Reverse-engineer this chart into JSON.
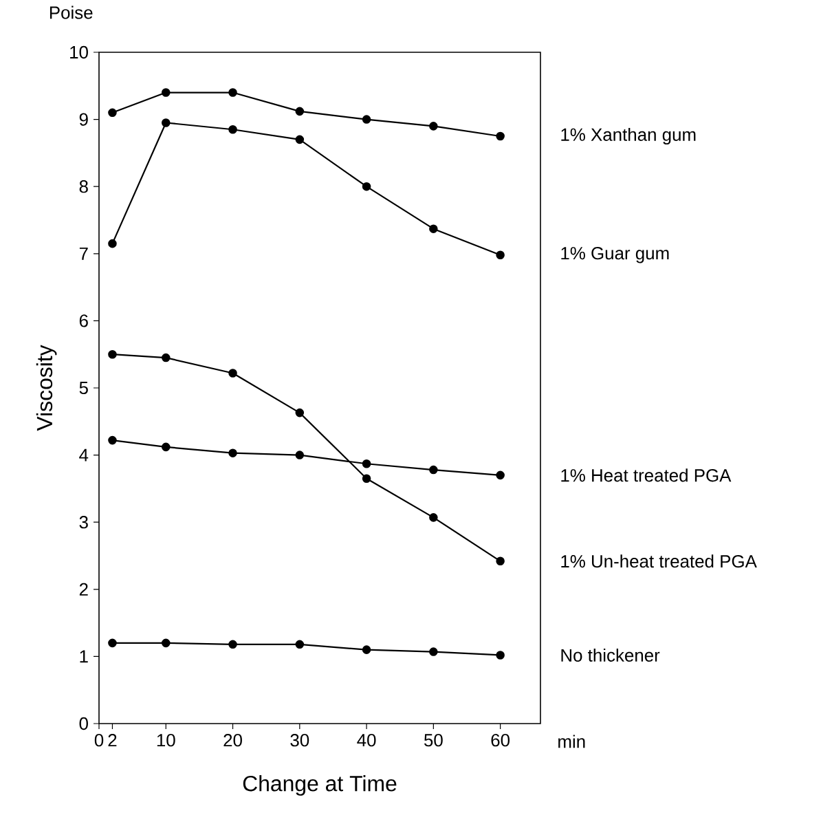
{
  "chart_data": {
    "type": "line",
    "xlabel": "Change at Time",
    "ylabel": "Viscosity",
    "annotations": [
      "Poise",
      "min"
    ],
    "x": [
      2,
      10,
      20,
      30,
      40,
      50,
      60
    ],
    "xlim": [
      0,
      66
    ],
    "xticks": [
      0,
      2,
      10,
      20,
      30,
      40,
      50,
      60
    ],
    "ylim": [
      0,
      10
    ],
    "yticks": [
      0,
      1,
      2,
      3,
      4,
      5,
      6,
      7,
      8,
      9,
      10
    ],
    "grid": false,
    "legend": "right",
    "marker": "circle",
    "line_style": "solid",
    "series": [
      {
        "name": "1% Xanthan gum",
        "color": "#000000",
        "values": [
          9.1,
          9.4,
          9.4,
          9.12,
          9.0,
          8.9,
          8.75
        ]
      },
      {
        "name": "1% Guar gum",
        "color": "#000000",
        "values": [
          7.15,
          8.95,
          8.85,
          8.7,
          8.0,
          7.37,
          6.98
        ]
      },
      {
        "name": "1% Heat treated PGA",
        "color": "#000000",
        "values": [
          4.22,
          4.12,
          4.03,
          4.0,
          3.87,
          3.78,
          3.7
        ]
      },
      {
        "name": "1% Un-heat treated PGA",
        "color": "#000000",
        "values": [
          5.5,
          5.45,
          5.22,
          4.63,
          3.65,
          3.07,
          2.42
        ]
      },
      {
        "name": "No thickener",
        "color": "#000000",
        "values": [
          1.2,
          1.2,
          1.18,
          1.18,
          1.1,
          1.07,
          1.02
        ]
      }
    ]
  }
}
